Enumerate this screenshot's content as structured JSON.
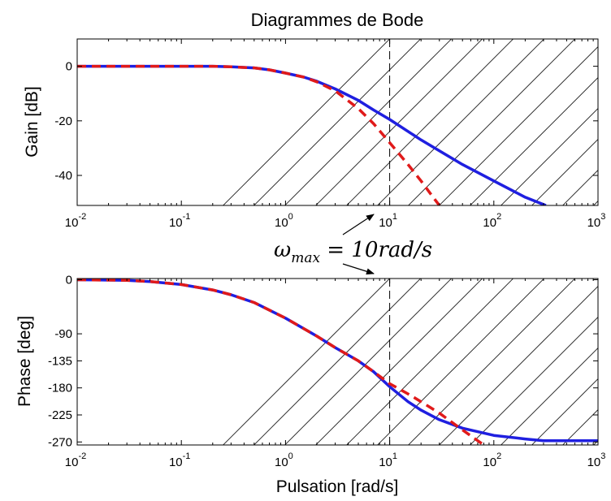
{
  "chart_data": [
    {
      "type": "line",
      "title": "Diagrammes de Bode",
      "xlabel": "",
      "ylabel": "Gain [dB]",
      "x_scale": "log",
      "xlim": [
        0.01,
        1000
      ],
      "ylim": [
        -51,
        10
      ],
      "x_ticks": [
        0.01,
        0.1,
        1,
        10,
        100,
        1000
      ],
      "x_tick_labels": [
        [
          "10",
          "-2"
        ],
        [
          "10",
          "-1"
        ],
        [
          "10",
          "0"
        ],
        [
          "10",
          "1"
        ],
        [
          "10",
          "2"
        ],
        [
          "10",
          "3"
        ]
      ],
      "y_ticks": [
        0,
        -20,
        -40
      ],
      "y_tick_labels": [
        "0",
        "-20",
        "-40"
      ],
      "vline_x": 10,
      "hatched_region": [
        10,
        1000
      ],
      "grid": false,
      "series": [
        {
          "color": "#1f1fe0",
          "style": "solid",
          "x": [
            0.01,
            0.1,
            0.2,
            0.3,
            0.5,
            0.7,
            1,
            1.5,
            2,
            3,
            5,
            7,
            10,
            20,
            30,
            50,
            100,
            200,
            316
          ],
          "y": [
            0,
            0,
            0,
            -0.2,
            -0.6,
            -1.3,
            -2.5,
            -4,
            -5.5,
            -8.3,
            -12.5,
            -16,
            -19.5,
            -27,
            -31,
            -36,
            -42,
            -48,
            -51
          ]
        },
        {
          "color": "#e01a1a",
          "style": "dashed",
          "x": [
            0.01,
            0.1,
            0.2,
            0.3,
            0.5,
            0.7,
            1,
            1.5,
            2,
            3,
            5,
            7,
            10,
            15,
            20,
            25,
            30
          ],
          "y": [
            0,
            0,
            0,
            -0.2,
            -0.6,
            -1.3,
            -2.5,
            -4,
            -5.7,
            -9,
            -15.5,
            -21,
            -28,
            -36,
            -42,
            -47,
            -51
          ]
        }
      ]
    },
    {
      "type": "line",
      "title": "",
      "xlabel": "Pulsation [rad/s]",
      "ylabel": "Phase [deg]",
      "x_scale": "log",
      "xlim": [
        0.01,
        1000
      ],
      "ylim": [
        -275,
        2
      ],
      "x_ticks": [
        0.01,
        0.1,
        1,
        10,
        100,
        1000
      ],
      "x_tick_labels": [
        [
          "10",
          "-2"
        ],
        [
          "10",
          "-1"
        ],
        [
          "10",
          "0"
        ],
        [
          "10",
          "1"
        ],
        [
          "10",
          "2"
        ],
        [
          "10",
          "3"
        ]
      ],
      "y_ticks": [
        0,
        -90,
        -135,
        -180,
        -225,
        -270
      ],
      "y_tick_labels": [
        "0",
        "-90",
        "-135",
        "-180",
        "-225",
        "-270"
      ],
      "vline_x": 10,
      "hatched_region": [
        10,
        1000
      ],
      "grid": false,
      "series": [
        {
          "color": "#1f1fe0",
          "style": "solid",
          "x": [
            0.01,
            0.03,
            0.05,
            0.1,
            0.2,
            0.3,
            0.5,
            1,
            2,
            3,
            5,
            7,
            10,
            15,
            20,
            30,
            50,
            100,
            200,
            300,
            1000
          ],
          "y": [
            0,
            -1,
            -3,
            -8,
            -17,
            -25,
            -38,
            -64,
            -94,
            -113,
            -135,
            -153,
            -178,
            -203,
            -217,
            -233,
            -247,
            -259,
            -265,
            -268,
            -268
          ]
        },
        {
          "color": "#e01a1a",
          "style": "dashed",
          "x": [
            0.01,
            0.03,
            0.05,
            0.1,
            0.2,
            0.3,
            0.5,
            1,
            2,
            3,
            5,
            7,
            10,
            15,
            20,
            30,
            50,
            80
          ],
          "y": [
            0,
            -1,
            -3,
            -8,
            -17,
            -25,
            -38,
            -64,
            -94,
            -113,
            -135,
            -153,
            -173,
            -190,
            -203,
            -222,
            -250,
            -275
          ]
        }
      ]
    }
  ],
  "annotation": {
    "omega": "ω",
    "sub": "max",
    "rest": " = 10rad/s"
  }
}
